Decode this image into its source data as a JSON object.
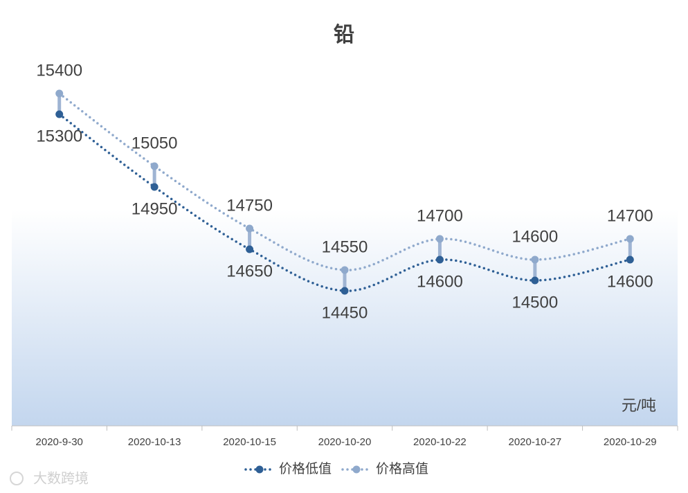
{
  "chart_data": {
    "type": "line",
    "title": "铅",
    "unit_label": "元/吨",
    "watermark": "大数跨境",
    "categories": [
      "2020-9-30",
      "2020-10-13",
      "2020-10-15",
      "2020-10-20",
      "2020-10-22",
      "2020-10-27",
      "2020-10-29"
    ],
    "series": [
      {
        "name": "价格低值",
        "color": "#2e5f95",
        "values": [
          15300,
          14950,
          14650,
          14450,
          14600,
          14500,
          14600
        ]
      },
      {
        "name": "价格高值",
        "color": "#8fa9cc",
        "values": [
          15400,
          15050,
          14750,
          14550,
          14700,
          14600,
          14700
        ]
      }
    ],
    "ylim": [
      13800,
      15800
    ],
    "high_low_lines": true,
    "legend": "bottom"
  }
}
